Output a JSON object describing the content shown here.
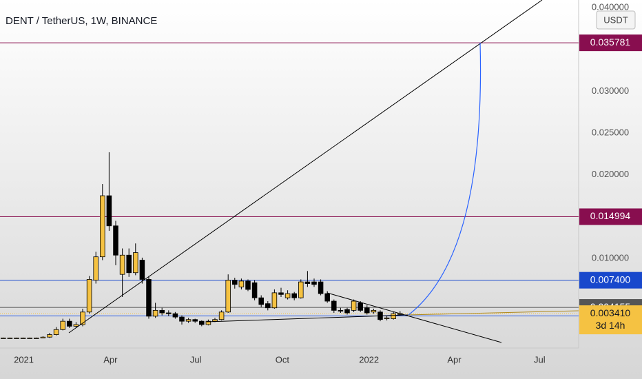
{
  "chart_data": {
    "type": "candlestick",
    "title": "DENT / TetherUS, 1W, BINANCE",
    "currency": "USDT",
    "up_color": "#f5c242",
    "down_color": "#000000",
    "open": [
      0.0005,
      0.0005,
      0.0005,
      0.0005,
      0.0005,
      0.0005,
      0.0005,
      0.0006,
      0.0009,
      0.0015,
      0.0025,
      0.0019,
      0.0021,
      0.0036,
      0.0074,
      0.0102,
      0.0175,
      0.0139,
      0.0081,
      0.0104,
      0.0083,
      0.0098,
      0.0075,
      0.0031,
      0.0038,
      0.0035,
      0.0034,
      0.003,
      0.0025,
      0.0027,
      0.0025,
      0.0021,
      0.0025,
      0.0027,
      0.0036,
      0.0074,
      0.0066,
      0.0073,
      0.0071,
      0.0053,
      0.0046,
      0.0041,
      0.0059,
      0.0053,
      0.0058,
      0.0053,
      0.0072,
      0.0072,
      0.0072,
      0.0058,
      0.0049,
      0.0038,
      0.0039,
      0.0038,
      0.0047,
      0.0041,
      0.0036,
      0.0036,
      0.0028,
      0.0028,
      0.0033
    ],
    "high": [
      0.00055,
      0.00055,
      0.00055,
      0.00055,
      0.00055,
      0.00055,
      0.0007,
      0.0011,
      0.0018,
      0.0028,
      0.0028,
      0.0024,
      0.004,
      0.0079,
      0.0108,
      0.0189,
      0.0227,
      0.0145,
      0.0112,
      0.0112,
      0.0118,
      0.0101,
      0.0079,
      0.0047,
      0.0041,
      0.0038,
      0.0036,
      0.0032,
      0.0029,
      0.0028,
      0.0026,
      0.0027,
      0.0029,
      0.0038,
      0.0081,
      0.0077,
      0.0076,
      0.0075,
      0.0074,
      0.0056,
      0.0049,
      0.0063,
      0.0065,
      0.0062,
      0.006,
      0.0075,
      0.0085,
      0.0076,
      0.0075,
      0.0061,
      0.0051,
      0.0041,
      0.0041,
      0.0051,
      0.0049,
      0.0044,
      0.004,
      0.0038,
      0.0031,
      0.0036,
      0.0037
    ],
    "low": [
      0.00045,
      0.00045,
      0.00045,
      0.00045,
      0.00045,
      0.00045,
      0.0005,
      0.0005,
      0.0008,
      0.0014,
      0.0017,
      0.0017,
      0.0019,
      0.0034,
      0.007,
      0.0098,
      0.0133,
      0.0092,
      0.0054,
      0.0078,
      0.008,
      0.007,
      0.0028,
      0.0029,
      0.0032,
      0.0031,
      0.0028,
      0.0021,
      0.0023,
      0.0023,
      0.0019,
      0.002,
      0.0024,
      0.0026,
      0.0035,
      0.0064,
      0.0063,
      0.0061,
      0.005,
      0.0042,
      0.0038,
      0.004,
      0.0054,
      0.0051,
      0.005,
      0.0052,
      0.0066,
      0.0066,
      0.0056,
      0.0047,
      0.0035,
      0.0035,
      0.0033,
      0.0036,
      0.0036,
      0.0033,
      0.0034,
      0.0025,
      0.0026,
      0.0027,
      0.0032
    ],
    "close": [
      0.0005,
      0.0005,
      0.0005,
      0.0005,
      0.0005,
      0.0005,
      0.0006,
      0.0009,
      0.0015,
      0.0025,
      0.0019,
      0.0021,
      0.0036,
      0.0075,
      0.0102,
      0.0175,
      0.0139,
      0.0104,
      0.0104,
      0.0083,
      0.0107,
      0.0075,
      0.0031,
      0.0038,
      0.0035,
      0.0034,
      0.003,
      0.0025,
      0.0027,
      0.0025,
      0.0021,
      0.0025,
      0.0027,
      0.0036,
      0.0074,
      0.0069,
      0.0073,
      0.0063,
      0.0053,
      0.0045,
      0.0041,
      0.0059,
      0.0057,
      0.0058,
      0.0053,
      0.0072,
      0.007,
      0.0069,
      0.0058,
      0.0049,
      0.0038,
      0.0037,
      0.0035,
      0.0049,
      0.0038,
      0.0035,
      0.0038,
      0.0027,
      0.0029,
      0.0034,
      0.00341
    ],
    "xlim": [
      -0.5,
      87
    ],
    "xticks": [
      {
        "value": 3.1,
        "label": "2021"
      },
      {
        "value": 16.2,
        "label": "Apr"
      },
      {
        "value": 29.1,
        "label": "Jul"
      },
      {
        "value": 42.2,
        "label": "Oct"
      },
      {
        "value": 55.3,
        "label": "2022"
      },
      {
        "value": 68.2,
        "label": "Apr"
      },
      {
        "value": 81.1,
        "label": "Jul"
      }
    ],
    "ylim": [
      -0.0007,
      0.0409
    ],
    "yticks": [
      {
        "value": 0.04,
        "label": "0.040000"
      },
      {
        "value": 0.03,
        "label": "0.030000"
      },
      {
        "value": 0.025,
        "label": "0.025000"
      },
      {
        "value": 0.02,
        "label": "0.020000"
      },
      {
        "value": 0.01,
        "label": "0.010000"
      }
    ],
    "price_lines": [
      {
        "value": 0.035781,
        "color": "#880e4f"
      },
      {
        "value": 0.014994,
        "color": "#880e4f"
      },
      {
        "value": 0.0074,
        "label": "0.007400",
        "color": "#1848cc"
      },
      {
        "value": 0.004155,
        "color": "#555555"
      },
      {
        "value": 0.00341,
        "label": "0.003410",
        "color": "#f5c242"
      }
    ],
    "hlines": [
      {
        "value": 0.00313,
        "color": "#1e53e5"
      }
    ],
    "countdown": "3d 14h"
  }
}
